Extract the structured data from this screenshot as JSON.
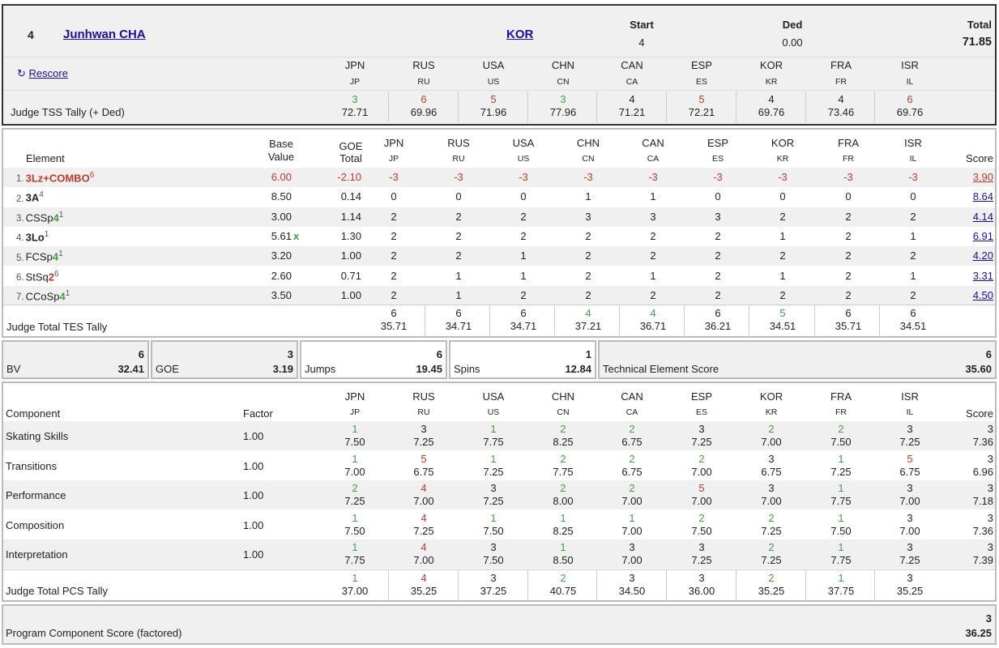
{
  "skater": {
    "rank": "4",
    "name": "Junhwan CHA",
    "nation": "KOR",
    "start_label": "Start",
    "start": "4",
    "ded_label": "Ded",
    "ded": "0.00",
    "total_label": "Total",
    "total": "71.85",
    "rescore": "Rescore"
  },
  "judges": [
    {
      "name": "JPN",
      "code": "JP"
    },
    {
      "name": "RUS",
      "code": "RU"
    },
    {
      "name": "USA",
      "code": "US"
    },
    {
      "name": "CHN",
      "code": "CN"
    },
    {
      "name": "CAN",
      "code": "CA"
    },
    {
      "name": "ESP",
      "code": "ES"
    },
    {
      "name": "KOR",
      "code": "KR"
    },
    {
      "name": "FRA",
      "code": "FR"
    },
    {
      "name": "ISR",
      "code": "IL"
    }
  ],
  "tss_tally": {
    "label": "Judge TSS Tally (+ Ded)",
    "ranks": [
      "3",
      "6",
      "5",
      "3",
      "4",
      "5",
      "4",
      "4",
      "6"
    ],
    "rank_colors": [
      "#4a9a4a",
      "#c0392b",
      "#c0392b",
      "#4a9a4a",
      "#222222",
      "#c0392b",
      "#222222",
      "#222222",
      "#c0392b"
    ],
    "values": [
      "72.71",
      "69.96",
      "71.96",
      "77.96",
      "71.21",
      "72.21",
      "69.76",
      "73.46",
      "69.76"
    ]
  },
  "elements": {
    "header": {
      "element": "Element",
      "base": "Base",
      "value": "Value",
      "goe": "GOE",
      "total": "Total",
      "score": "Score"
    },
    "rows": [
      {
        "num": "1.",
        "name": "3Lz+COMBO",
        "level": "",
        "sup": "6",
        "bv": "6.00",
        "x": "",
        "goe": "-2.10",
        "marks": [
          "-3",
          "-3",
          "-3",
          "-3",
          "-3",
          "-3",
          "-3",
          "-3",
          "-3"
        ],
        "score": "3.90"
      },
      {
        "num": "2.",
        "name": "3A",
        "level": "",
        "sup": "4",
        "bv": "8.50",
        "x": "",
        "goe": "0.14",
        "marks": [
          "0",
          "0",
          "0",
          "1",
          "1",
          "0",
          "0",
          "0",
          "0"
        ],
        "score": "8.64"
      },
      {
        "num": "3.",
        "name": "CSSp",
        "level": "4",
        "sup": "1",
        "bv": "3.00",
        "x": "",
        "goe": "1.14",
        "marks": [
          "2",
          "2",
          "2",
          "3",
          "3",
          "3",
          "2",
          "2",
          "2"
        ],
        "score": "4.14"
      },
      {
        "num": "4.",
        "name": "3Lo",
        "level": "",
        "sup": "1",
        "bv": "5.61",
        "x": "x",
        "goe": "1.30",
        "marks": [
          "2",
          "2",
          "2",
          "2",
          "2",
          "2",
          "1",
          "2",
          "1"
        ],
        "score": "6.91"
      },
      {
        "num": "5.",
        "name": "FCSp",
        "level": "4",
        "sup": "1",
        "bv": "3.20",
        "x": "",
        "goe": "1.00",
        "marks": [
          "2",
          "2",
          "1",
          "2",
          "2",
          "2",
          "2",
          "2",
          "2"
        ],
        "score": "4.20"
      },
      {
        "num": "6.",
        "name": "StSq",
        "level": "2",
        "sup": "6",
        "bv": "2.60",
        "x": "",
        "goe": "0.71",
        "marks": [
          "2",
          "1",
          "1",
          "2",
          "1",
          "2",
          "1",
          "2",
          "1"
        ],
        "score": "3.31"
      },
      {
        "num": "7.",
        "name": "CCoSp",
        "level": "4",
        "sup": "1",
        "bv": "3.50",
        "x": "",
        "goe": "1.00",
        "marks": [
          "2",
          "1",
          "2",
          "2",
          "2",
          "2",
          "2",
          "2",
          "2"
        ],
        "score": "4.50"
      }
    ]
  },
  "tes_tally": {
    "label": "Judge Total TES Tally",
    "ranks": [
      "6",
      "6",
      "6",
      "4",
      "4",
      "6",
      "5",
      "6",
      "6"
    ],
    "rank_colors": [
      "#222222",
      "#222222",
      "#222222",
      "#4a9a4a",
      "#4a9a4a",
      "#222222",
      "#4a9a4a",
      "#222222",
      "#222222"
    ],
    "values": [
      "35.71",
      "34.71",
      "34.71",
      "37.21",
      "36.71",
      "36.21",
      "34.51",
      "35.71",
      "34.51"
    ]
  },
  "summary": {
    "bv": {
      "label": "BV",
      "rank": "6",
      "value": "32.41"
    },
    "goe": {
      "label": "GOE",
      "rank": "3",
      "value": "3.19"
    },
    "jumps": {
      "label": "Jumps",
      "rank": "6",
      "value": "19.45"
    },
    "spins": {
      "label": "Spins",
      "rank": "1",
      "value": "12.84"
    },
    "tes": {
      "label": "Technical Element Score",
      "rank": "6",
      "value": "35.60"
    }
  },
  "components": {
    "header": {
      "component": "Component",
      "factor": "Factor",
      "score": "Score"
    },
    "rows": [
      {
        "name": "Skating Skills",
        "factor": "1.00",
        "ranks": [
          "1",
          "3",
          "1",
          "2",
          "2",
          "3",
          "2",
          "2",
          "3"
        ],
        "values": [
          "7.50",
          "7.25",
          "7.75",
          "8.25",
          "6.75",
          "7.25",
          "7.00",
          "7.50",
          "7.25"
        ],
        "score_rank": "3",
        "score": "7.36"
      },
      {
        "name": "Transitions",
        "factor": "1.00",
        "ranks": [
          "1",
          "5",
          "1",
          "2",
          "2",
          "2",
          "3",
          "1",
          "5"
        ],
        "values": [
          "7.00",
          "6.75",
          "7.25",
          "7.75",
          "6.75",
          "7.00",
          "6.75",
          "7.25",
          "6.75"
        ],
        "score_rank": "3",
        "score": "6.96"
      },
      {
        "name": "Performance",
        "factor": "1.00",
        "ranks": [
          "2",
          "4",
          "3",
          "2",
          "2",
          "5",
          "3",
          "1",
          "3"
        ],
        "values": [
          "7.25",
          "7.00",
          "7.25",
          "8.00",
          "7.00",
          "7.00",
          "7.00",
          "7.75",
          "7.00"
        ],
        "score_rank": "3",
        "score": "7.18"
      },
      {
        "name": "Composition",
        "factor": "1.00",
        "ranks": [
          "1",
          "4",
          "1",
          "1",
          "1",
          "2",
          "2",
          "1",
          "3"
        ],
        "values": [
          "7.50",
          "7.25",
          "7.50",
          "8.25",
          "7.00",
          "7.50",
          "7.25",
          "7.50",
          "7.00"
        ],
        "score_rank": "3",
        "score": "7.36"
      },
      {
        "name": "Interpretation",
        "factor": "1.00",
        "ranks": [
          "1",
          "4",
          "3",
          "1",
          "3",
          "3",
          "2",
          "1",
          "3"
        ],
        "values": [
          "7.75",
          "7.00",
          "7.50",
          "8.50",
          "7.00",
          "7.25",
          "7.25",
          "7.75",
          "7.25"
        ],
        "score_rank": "3",
        "score": "7.39"
      }
    ]
  },
  "pcs_tally": {
    "label": "Judge Total PCS Tally",
    "ranks": [
      "1",
      "4",
      "3",
      "2",
      "3",
      "3",
      "2",
      "1",
      "3"
    ],
    "values": [
      "37.00",
      "35.25",
      "37.25",
      "40.75",
      "34.50",
      "36.00",
      "35.25",
      "37.75",
      "35.25"
    ]
  },
  "pcs": {
    "label": "Program Component Score (factored)",
    "rank": "3",
    "value": "36.25"
  },
  "colors": {
    "green": "#4a9a4a",
    "red": "#c0392b",
    "link": "#1a0dab",
    "stripe": "#f0f0f0",
    "panel": "#f0f0f0"
  }
}
